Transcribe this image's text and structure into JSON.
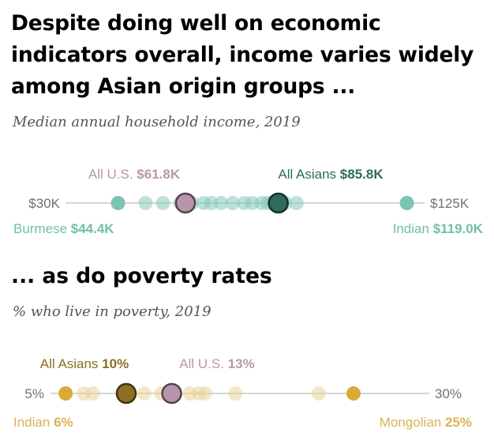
{
  "title": "Despite doing well on economic indicators overall, income varies widely among Asian origin groups ...",
  "chart_data": [
    {
      "type": "scatter",
      "subtitle": "Median annual household income, 2019",
      "range": [
        30,
        125
      ],
      "range_labels": [
        "$30K",
        "$125K"
      ],
      "unit_note": "thousands of dollars",
      "points": [
        44.4,
        51.5,
        56.0,
        60.5,
        63.5,
        66.5,
        68.5,
        71.0,
        74.0,
        77.0,
        79.0,
        81.5,
        83.0,
        84.0,
        87.5,
        90.5,
        119.0
      ],
      "highlights": [
        {
          "name": "All U.S.",
          "value": 61.8,
          "value_label": "$61.8K",
          "color": "#b796ab",
          "label_position": "above"
        },
        {
          "name": "All Asians",
          "value": 85.8,
          "value_label": "$85.8K",
          "color": "#2d6b5c",
          "label_position": "above"
        }
      ],
      "extremes": [
        {
          "name": "Burmese",
          "value": 44.4,
          "value_label": "$44.4K",
          "label_position": "below-left"
        },
        {
          "name": "Indian",
          "value": 119.0,
          "value_label": "$119.0K",
          "label_position": "below-right"
        }
      ],
      "colors": {
        "point": "#86c9b9",
        "extreme_point": "#7cc4b1",
        "label": "#71bdab",
        "axis": "#c8c8c8",
        "range_text": "#707070"
      }
    },
    {
      "type": "scatter",
      "title": "... as do poverty rates",
      "subtitle": "% who live in poverty, 2019",
      "range": [
        5,
        30
      ],
      "range_labels": [
        "5%",
        "30%"
      ],
      "points": [
        6.0,
        7.2,
        7.8,
        10.0,
        11.2,
        12.3,
        14.2,
        14.8,
        15.2,
        17.2,
        22.7,
        25.0
      ],
      "highlights": [
        {
          "name": "All Asians",
          "value": 10.0,
          "value_label": "10%",
          "color": "#8d6f21",
          "label_position": "above"
        },
        {
          "name": "All U.S.",
          "value": 13.0,
          "value_label": "13%",
          "color": "#b796ab",
          "label_position": "above"
        }
      ],
      "extremes": [
        {
          "name": "Indian",
          "value": 6.0,
          "value_label": "6%",
          "label_position": "below-left"
        },
        {
          "name": "Mongolian",
          "value": 25.0,
          "value_label": "25%",
          "label_position": "below-right"
        }
      ],
      "colors": {
        "point": "#e8d399",
        "extreme_point": "#d9ab35",
        "label": "#dcb251",
        "axis": "#c8c8c8",
        "range_text": "#707070"
      }
    }
  ]
}
